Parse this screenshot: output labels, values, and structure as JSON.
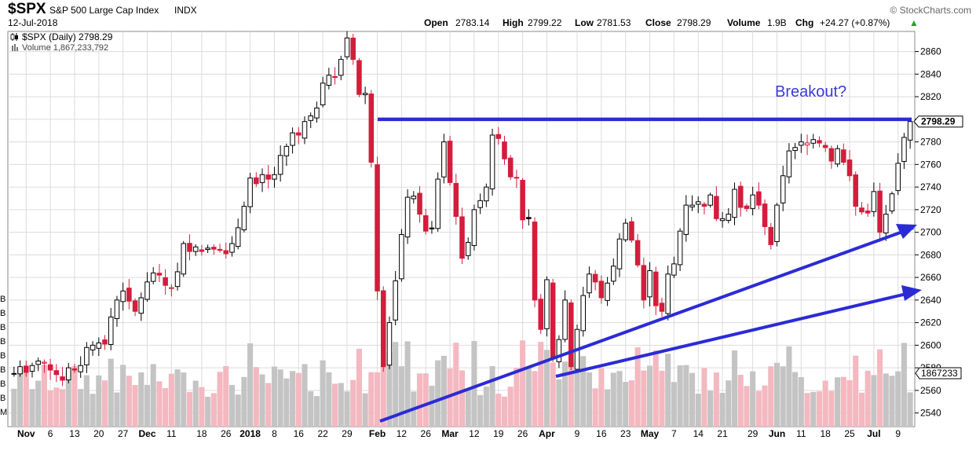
{
  "header": {
    "symbol": "$SPX",
    "name": "S&P 500 Large Cap Index",
    "exchange": "INDX",
    "date": "12-Jul-2018",
    "brand": "© StockCharts.com",
    "quote": {
      "open_label": "Open",
      "open": "2783.14",
      "high_label": "High",
      "high": "2799.22",
      "low_label": "Low",
      "low": "2781.53",
      "close_label": "Close",
      "close": "2798.29",
      "volume_label": "Volume",
      "volume": "1.9B",
      "chg_label": "Chg",
      "chg": "+24.27 (+0.87%)",
      "chg_arrow": "▲"
    }
  },
  "legend": {
    "price": "$SPX (Daily) 2798.29",
    "volume": "Volume 1,867,233,792"
  },
  "annotations": {
    "breakout": "Breakout?",
    "last_price": "2798.29",
    "last_volume": "1867233"
  },
  "colors": {
    "up": "#000000",
    "down": "#d41c3c",
    "vol_up": "#c4c4c4",
    "vol_down": "#f4b8c0",
    "trend": "#2b2bd6",
    "grid": "#dcdcdc"
  },
  "chart_data": {
    "type": "candlestick",
    "y_ticks": [
      2540,
      2560,
      2580,
      2600,
      2620,
      2640,
      2660,
      2680,
      2700,
      2720,
      2740,
      2760,
      2780,
      2800,
      2820,
      2840,
      2860
    ],
    "ylim": [
      2530,
      2875
    ],
    "x_tick_labels": [
      "Nov",
      "6",
      "13",
      "20",
      "27",
      "Dec",
      "11",
      "18",
      "26",
      "2018",
      "8",
      "16",
      "22",
      "29",
      "Feb",
      "12",
      "26",
      "Mar",
      "12",
      "19",
      "26",
      "Apr",
      "9",
      "16",
      "23",
      "May",
      "7",
      "14",
      "21",
      "29",
      "Jun",
      "11",
      "18",
      "25",
      "Jul",
      "9"
    ],
    "x_bold_labels": [
      "Nov",
      "Dec",
      "2018",
      "Feb",
      "Mar",
      "Apr",
      "May",
      "Jun",
      "Jul"
    ],
    "volume_axis_labels": [
      "B",
      "B",
      "B",
      "B",
      "B",
      "B",
      "B",
      "B",
      "M"
    ],
    "resistance_level": 2800,
    "close": [
      2575,
      2581,
      2576,
      2582,
      2586,
      2585,
      2578,
      2574,
      2569,
      2580,
      2578,
      2582,
      2598,
      2600,
      2602,
      2601,
      2625,
      2640,
      2648,
      2639,
      2630,
      2642,
      2656,
      2664,
      2662,
      2653,
      2651,
      2665,
      2690,
      2683,
      2687,
      2683,
      2686,
      2685,
      2684,
      2681,
      2690,
      2704,
      2723,
      2748,
      2743,
      2751,
      2747,
      2751,
      2768,
      2776,
      2788,
      2786,
      2798,
      2803,
      2810,
      2832,
      2839,
      2837,
      2853,
      2872,
      2853,
      2822,
      2823,
      2762,
      2648,
      2581,
      2620,
      2657,
      2698,
      2731,
      2732,
      2716,
      2701,
      2703,
      2747,
      2780,
      2744,
      2714,
      2677,
      2691,
      2720,
      2728,
      2740,
      2786,
      2783,
      2765,
      2749,
      2748,
      2711,
      2712,
      2640,
      2614,
      2658,
      2588,
      2605,
      2640,
      2581,
      2614,
      2644,
      2663,
      2656,
      2642,
      2655,
      2670,
      2694,
      2708,
      2693,
      2671,
      2640,
      2666,
      2635,
      2630,
      2663,
      2672,
      2701,
      2724,
      2724,
      2727,
      2723,
      2733,
      2712,
      2712,
      2716,
      2738,
      2722,
      2721,
      2733,
      2724,
      2705,
      2689,
      2724,
      2750,
      2772,
      2775,
      2780,
      2779,
      2782,
      2779,
      2775,
      2763,
      2774,
      2762,
      2750,
      2723,
      2718,
      2717,
      2736,
      2700,
      2716,
      2734,
      2761,
      2784,
      2798
    ]
  }
}
